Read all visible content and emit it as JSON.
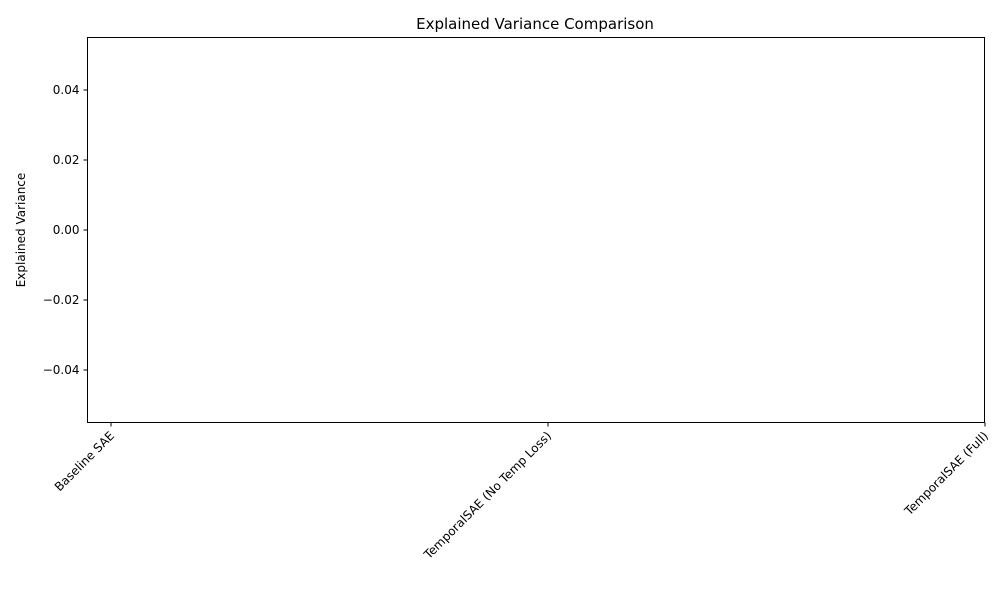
{
  "chart_data": {
    "type": "bar",
    "title": "Explained Variance Comparison",
    "xlabel": "",
    "ylabel": "Explained Variance",
    "categories": [
      "Baseline SAE",
      "TemporalSAE (No Temp Loss)",
      "TemporalSAE (Full)"
    ],
    "values": [
      0,
      0,
      0
    ],
    "ylim": [
      -0.055,
      0.055
    ],
    "yticks": [
      -0.04,
      -0.02,
      0.0,
      0.02,
      0.04
    ],
    "ytick_labels": [
      "−0.04",
      "−0.02",
      "0.00",
      "0.02",
      "0.04"
    ],
    "grid": false,
    "legend": "none"
  }
}
